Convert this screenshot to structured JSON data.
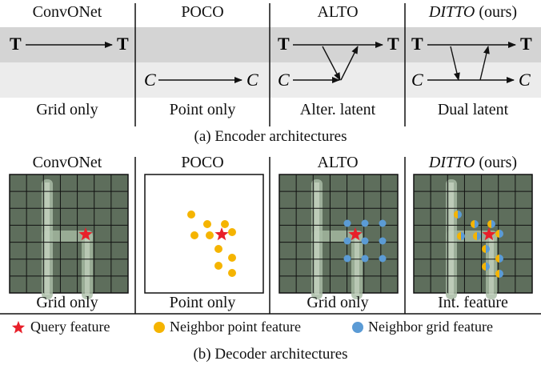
{
  "encoder": {
    "columns": [
      {
        "name": "ConvONet",
        "italic": false,
        "suffix": "",
        "footer": "Grid only"
      },
      {
        "name": "POCO",
        "italic": false,
        "suffix": "",
        "footer": "Point only"
      },
      {
        "name": "ALTO",
        "italic": false,
        "suffix": "",
        "footer": "Alter. latent"
      },
      {
        "name": "DITTO",
        "italic": true,
        "suffix": " (ours)",
        "footer": "Dual latent"
      }
    ],
    "row_labels": {
      "top": "T",
      "bottom": "C"
    },
    "caption": "(a) Encoder architectures"
  },
  "decoder": {
    "columns": [
      {
        "name": "ConvONet",
        "italic": false,
        "suffix": "",
        "footer": "Grid only"
      },
      {
        "name": "POCO",
        "italic": false,
        "suffix": "",
        "footer": "Point only"
      },
      {
        "name": "ALTO",
        "italic": false,
        "suffix": "",
        "footer": "Grid only"
      },
      {
        "name": "DITTO",
        "italic": true,
        "suffix": " (ours)",
        "footer": "Int. feature"
      }
    ],
    "legend": {
      "query": "Query feature",
      "point": "Neighbor point feature",
      "grid": "Neighbor grid feature"
    },
    "caption": "(b) Decoder architectures"
  },
  "colors": {
    "query": "#e8202a",
    "point": "#f5b400",
    "grid": "#5b9bd5",
    "band_top": "#d4d4d4",
    "band_bottom": "#ececec",
    "grid_bg": "#5e6e5c"
  }
}
